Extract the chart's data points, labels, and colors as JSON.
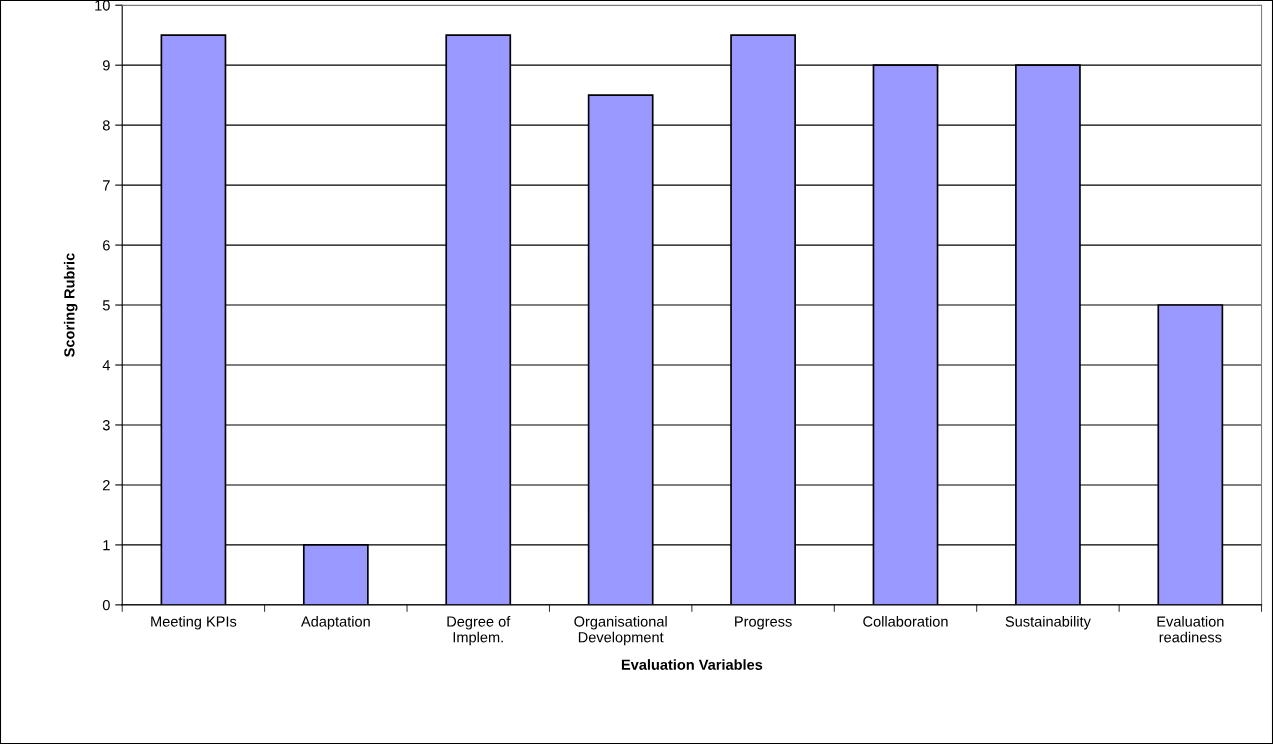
{
  "chart_data": {
    "type": "bar",
    "xlabel": "Evaluation Variables",
    "ylabel": "Scoring Rubric",
    "categories": [
      "Meeting KPIs",
      "Adaptation",
      "Degree of\nImplem.",
      "Organisational\nDevelopment",
      "Progress",
      "Collaboration",
      "Sustainability",
      "Evaluation\nreadiness"
    ],
    "values": [
      9.5,
      1,
      9.5,
      8.5,
      9.5,
      9,
      9,
      5
    ],
    "color": "#9999ff",
    "ylim": [
      0,
      10
    ],
    "yticks": [
      0,
      1,
      2,
      3,
      4,
      5,
      6,
      7,
      8,
      9,
      10
    ],
    "grid": "y",
    "legend": false
  }
}
